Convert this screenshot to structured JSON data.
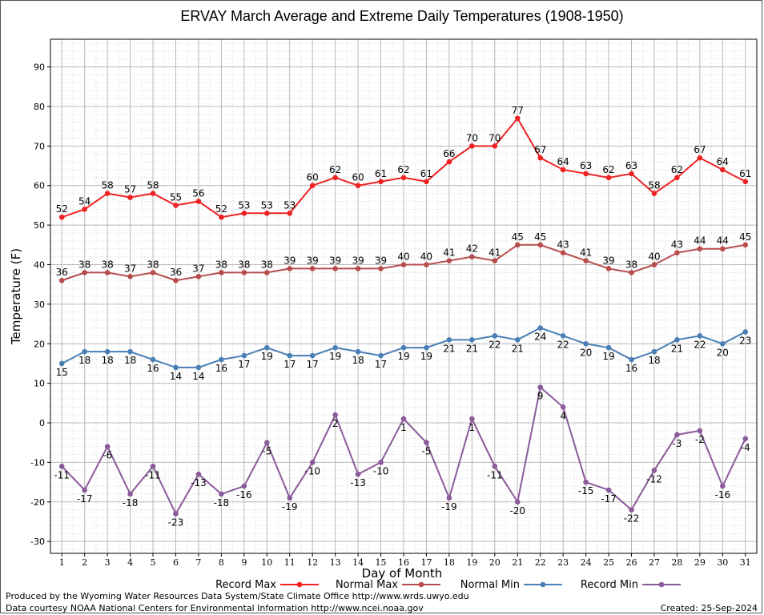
{
  "chart_data": {
    "type": "line",
    "title": "ERVAY March Average and Extreme Daily Temperatures (1908-1950)",
    "xlabel": "Day of Month",
    "ylabel": "Temperature (F)",
    "ylim": [
      -33,
      97
    ],
    "xlim": [
      0.5,
      31.5
    ],
    "yticks": [
      -30,
      -20,
      -10,
      0,
      10,
      20,
      30,
      40,
      50,
      60,
      70,
      80,
      90
    ],
    "x": [
      1,
      2,
      3,
      4,
      5,
      6,
      7,
      8,
      9,
      10,
      11,
      12,
      13,
      14,
      15,
      16,
      17,
      18,
      19,
      20,
      21,
      22,
      23,
      24,
      25,
      26,
      27,
      28,
      29,
      30,
      31
    ],
    "grid": true,
    "legend_placement": "bottom",
    "series": [
      {
        "name": "Record Max",
        "color": "#ee2222",
        "label_pos": "above",
        "values": [
          52,
          54,
          58,
          57,
          58,
          55,
          56,
          52,
          53,
          53,
          53,
          60,
          62,
          60,
          61,
          62,
          61,
          66,
          70,
          70,
          77,
          67,
          64,
          63,
          62,
          63,
          58,
          62,
          67,
          64,
          61
        ]
      },
      {
        "name": "Normal Max",
        "color": "#b84c4c",
        "label_pos": "above",
        "values": [
          36,
          38,
          38,
          37,
          38,
          36,
          37,
          38,
          38,
          38,
          39,
          39,
          39,
          39,
          39,
          40,
          40,
          41,
          42,
          41,
          45,
          45,
          43,
          41,
          39,
          38,
          40,
          43,
          44,
          44,
          45
        ]
      },
      {
        "name": "Normal Min",
        "color": "#4a7fb5",
        "label_pos": "below",
        "values": [
          15,
          18,
          18,
          18,
          16,
          14,
          14,
          16,
          17,
          19,
          17,
          17,
          19,
          18,
          17,
          19,
          19,
          21,
          21,
          22,
          21,
          24,
          22,
          20,
          19,
          16,
          18,
          21,
          22,
          20,
          23
        ]
      },
      {
        "name": "Record Min",
        "color": "#8a5a9a",
        "label_pos": "below",
        "values": [
          -11,
          -17,
          -6,
          -18,
          -11,
          -23,
          -13,
          -18,
          -16,
          -5,
          -19,
          -10,
          2,
          -13,
          -10,
          1,
          -5,
          -19,
          1,
          -11,
          -20,
          9,
          4,
          -15,
          -17,
          -22,
          -12,
          -3,
          -2,
          -16,
          -4
        ]
      }
    ]
  },
  "footer": {
    "produced_by": "Produced by the Wyoming Water Resources Data System/State Climate Office http://www.wrds.uwyo.edu",
    "courtesy": "Data courtesy NOAA National Centers for Environmental Information http://www.ncei.noaa.gov",
    "created": "Created:  25-Sep-2024"
  }
}
